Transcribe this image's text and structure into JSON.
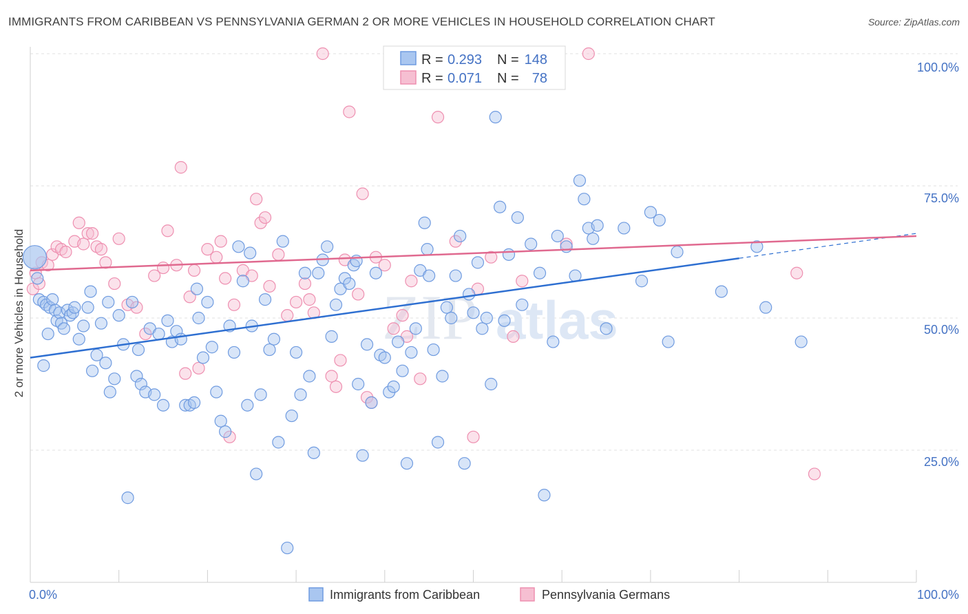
{
  "title": "IMMIGRANTS FROM CARIBBEAN VS PENNSYLVANIA GERMAN 2 OR MORE VEHICLES IN HOUSEHOLD CORRELATION CHART",
  "source": "Source: ZipAtlas.com",
  "watermark": {
    "zip": "ZIP",
    "atlas": "atlas"
  },
  "legend_top": [
    {
      "r_label": "R =",
      "r_value": "0.293",
      "n_label": "N =",
      "n_value": "148",
      "color": "#6f9be0"
    },
    {
      "r_label": "R =",
      "r_value": "0.071",
      "n_label": "N =",
      "n_value": "78",
      "color": "#ee8fb0"
    }
  ],
  "legend_bottom": [
    {
      "label": "Immigrants from Caribbean",
      "color": "#6f9be0"
    },
    {
      "label": "Pennsylvania Germans",
      "color": "#ee8fb0"
    }
  ],
  "colors": {
    "blue_fill": "#a9c6f0",
    "blue_stroke": "#6f9be0",
    "blue_line": "#2e6fd1",
    "pink_fill": "#f6bfd2",
    "pink_stroke": "#ee8fb0",
    "pink_line": "#e0698f"
  },
  "chart_data": {
    "type": "scatter",
    "xlabel": "",
    "ylabel": "2 or more Vehicles in Household",
    "xlim": [
      0,
      100
    ],
    "ylim": [
      0,
      100
    ],
    "x_tick_labels": [
      "0.0%",
      "100.0%"
    ],
    "y_ticks": [
      25,
      50,
      75,
      100
    ],
    "y_tick_labels": [
      "25.0%",
      "50.0%",
      "75.0%",
      "100.0%"
    ],
    "grid": true,
    "series": [
      {
        "name": "Immigrants from Caribbean",
        "color": "#6f9be0",
        "trend": {
          "x": [
            0,
            80
          ],
          "y": [
            42.5,
            61.3
          ],
          "dashed_to": [
            100,
            66.0
          ]
        },
        "points": [
          [
            0.5,
            61.5
          ],
          [
            0.8,
            57.5
          ],
          [
            1.0,
            53.5
          ],
          [
            1.5,
            53
          ],
          [
            1.8,
            52.5
          ],
          [
            2.2,
            52
          ],
          [
            2.5,
            53.5
          ],
          [
            2.8,
            51.5
          ],
          [
            3.0,
            49.5
          ],
          [
            3.3,
            51
          ],
          [
            3.5,
            49
          ],
          [
            3.8,
            48
          ],
          [
            4.2,
            51.5
          ],
          [
            4.5,
            50.5
          ],
          [
            4.8,
            51
          ],
          [
            5.0,
            52
          ],
          [
            5.5,
            46
          ],
          [
            6.0,
            48.5
          ],
          [
            6.5,
            52
          ],
          [
            7.0,
            40
          ],
          [
            7.5,
            43
          ],
          [
            8.0,
            49
          ],
          [
            8.5,
            41.5
          ],
          [
            8.8,
            53
          ],
          [
            9.0,
            36
          ],
          [
            9.5,
            38.5
          ],
          [
            10.0,
            50.5
          ],
          [
            10.5,
            45
          ],
          [
            11.0,
            16
          ],
          [
            11.5,
            53
          ],
          [
            12.0,
            39
          ],
          [
            12.5,
            37.5
          ],
          [
            13.0,
            36
          ],
          [
            13.5,
            48
          ],
          [
            14.0,
            35.5
          ],
          [
            14.5,
            47
          ],
          [
            15.0,
            33.5
          ],
          [
            15.5,
            49.5
          ],
          [
            16.0,
            45.5
          ],
          [
            16.5,
            47.5
          ],
          [
            17.0,
            46
          ],
          [
            17.5,
            33.5
          ],
          [
            18.0,
            33.5
          ],
          [
            18.5,
            34
          ],
          [
            19.0,
            50
          ],
          [
            19.5,
            42.5
          ],
          [
            20.0,
            53
          ],
          [
            20.5,
            44.5
          ],
          [
            21.0,
            36
          ],
          [
            21.5,
            30.5
          ],
          [
            22.0,
            28.5
          ],
          [
            22.5,
            48.5
          ],
          [
            23.0,
            43.5
          ],
          [
            23.5,
            63.5
          ],
          [
            24.0,
            57
          ],
          [
            24.5,
            33.5
          ],
          [
            25.0,
            48.5
          ],
          [
            25.5,
            20.5
          ],
          [
            26.0,
            35.5
          ],
          [
            26.5,
            53.5
          ],
          [
            27.0,
            44
          ],
          [
            27.5,
            46
          ],
          [
            28.0,
            26.5
          ],
          [
            28.5,
            64.5
          ],
          [
            29.0,
            6.5
          ],
          [
            29.5,
            31.5
          ],
          [
            30.0,
            43.5
          ],
          [
            30.5,
            35.5
          ],
          [
            31.0,
            58.5
          ],
          [
            31.5,
            39
          ],
          [
            32.0,
            24.5
          ],
          [
            32.5,
            58.5
          ],
          [
            33.0,
            61
          ],
          [
            33.5,
            63.5
          ],
          [
            34.0,
            46.5
          ],
          [
            34.5,
            52.5
          ],
          [
            35.0,
            55.5
          ],
          [
            35.5,
            57.5
          ],
          [
            36.0,
            56.5
          ],
          [
            36.5,
            60
          ],
          [
            37.0,
            37.5
          ],
          [
            37.5,
            24
          ],
          [
            38.0,
            45
          ],
          [
            38.5,
            34
          ],
          [
            39.0,
            58.5
          ],
          [
            39.5,
            43
          ],
          [
            40.0,
            42.5
          ],
          [
            40.5,
            36
          ],
          [
            41.0,
            37
          ],
          [
            41.5,
            45.5
          ],
          [
            42.0,
            40
          ],
          [
            42.5,
            22.5
          ],
          [
            43.0,
            43.5
          ],
          [
            43.5,
            48
          ],
          [
            44.0,
            59
          ],
          [
            44.5,
            68
          ],
          [
            45.0,
            58
          ],
          [
            45.5,
            44
          ],
          [
            46.0,
            26.5
          ],
          [
            46.5,
            39
          ],
          [
            47.0,
            52
          ],
          [
            47.5,
            50
          ],
          [
            48.0,
            58
          ],
          [
            48.5,
            65.5
          ],
          [
            49.0,
            22.5
          ],
          [
            49.5,
            54.5
          ],
          [
            50.0,
            51
          ],
          [
            50.5,
            60.5
          ],
          [
            51.0,
            48
          ],
          [
            51.5,
            50
          ],
          [
            52.0,
            37.5
          ],
          [
            52.5,
            88
          ],
          [
            53.0,
            71
          ],
          [
            53.5,
            49.5
          ],
          [
            54.0,
            62
          ],
          [
            55.0,
            69
          ],
          [
            55.5,
            52.5
          ],
          [
            56.5,
            64
          ],
          [
            57.5,
            58.5
          ],
          [
            58.0,
            16.5
          ],
          [
            59.0,
            45.5
          ],
          [
            59.5,
            65.5
          ],
          [
            60.5,
            63.5
          ],
          [
            61.5,
            58
          ],
          [
            62.0,
            76
          ],
          [
            62.5,
            72.5
          ],
          [
            63.0,
            67
          ],
          [
            63.5,
            65
          ],
          [
            64.0,
            67.5
          ],
          [
            65.0,
            48
          ],
          [
            67.0,
            67
          ],
          [
            69.0,
            57
          ],
          [
            70.0,
            70
          ],
          [
            71.0,
            68.5
          ],
          [
            72.0,
            45.5
          ],
          [
            73.0,
            62.5
          ],
          [
            78.0,
            55
          ],
          [
            82.0,
            63.5
          ],
          [
            83.0,
            52
          ],
          [
            87.0,
            45.5
          ],
          [
            1.5,
            41
          ],
          [
            2.0,
            47
          ],
          [
            6.8,
            55
          ],
          [
            12.2,
            44
          ],
          [
            18.8,
            55.5
          ],
          [
            24.8,
            62.3
          ],
          [
            36.8,
            60.8
          ],
          [
            44.8,
            63
          ]
        ]
      },
      {
        "name": "Pennsylvania Germans",
        "color": "#ee8fb0",
        "trend": {
          "x": [
            0,
            100
          ],
          "y": [
            59.0,
            65.5
          ]
        },
        "points": [
          [
            0.3,
            55.5
          ],
          [
            0.6,
            58.5
          ],
          [
            1.0,
            56.5
          ],
          [
            1.3,
            60.5
          ],
          [
            2.0,
            60
          ],
          [
            2.5,
            62
          ],
          [
            3.0,
            63.5
          ],
          [
            3.5,
            63
          ],
          [
            4.0,
            62.5
          ],
          [
            5.0,
            64.5
          ],
          [
            5.5,
            68
          ],
          [
            6.0,
            64
          ],
          [
            6.5,
            66
          ],
          [
            7.0,
            66
          ],
          [
            7.5,
            63.5
          ],
          [
            8.0,
            63
          ],
          [
            8.5,
            60.5
          ],
          [
            9.5,
            56.5
          ],
          [
            10.0,
            65
          ],
          [
            11.0,
            52.5
          ],
          [
            12.0,
            52
          ],
          [
            13.0,
            47
          ],
          [
            14.0,
            58
          ],
          [
            15.0,
            59.5
          ],
          [
            15.5,
            66.5
          ],
          [
            16.5,
            60
          ],
          [
            17.0,
            78.5
          ],
          [
            17.5,
            39.5
          ],
          [
            18.0,
            54
          ],
          [
            18.5,
            59
          ],
          [
            19.0,
            40.5
          ],
          [
            20.0,
            63
          ],
          [
            21.0,
            61.5
          ],
          [
            21.5,
            64.5
          ],
          [
            22.0,
            57.5
          ],
          [
            22.5,
            27.5
          ],
          [
            23.0,
            52.5
          ],
          [
            24.0,
            59
          ],
          [
            25.0,
            58
          ],
          [
            25.5,
            72.5
          ],
          [
            26.0,
            68
          ],
          [
            26.5,
            69
          ],
          [
            27.0,
            56
          ],
          [
            28.0,
            62
          ],
          [
            29.0,
            50.5
          ],
          [
            30.0,
            53
          ],
          [
            31.0,
            56.5
          ],
          [
            31.5,
            53.5
          ],
          [
            32.0,
            51
          ],
          [
            33.0,
            100
          ],
          [
            34.0,
            39
          ],
          [
            34.5,
            37
          ],
          [
            35.0,
            42
          ],
          [
            35.5,
            61
          ],
          [
            36.0,
            89
          ],
          [
            37.0,
            54.5
          ],
          [
            37.5,
            73.5
          ],
          [
            38.0,
            35
          ],
          [
            38.5,
            34
          ],
          [
            39.0,
            61.5
          ],
          [
            40.0,
            60
          ],
          [
            41.0,
            48
          ],
          [
            42.0,
            50.5
          ],
          [
            42.5,
            46.5
          ],
          [
            43.0,
            57
          ],
          [
            44.0,
            38.5
          ],
          [
            45.0,
            100
          ],
          [
            46.0,
            88
          ],
          [
            48.0,
            64.5
          ],
          [
            50.0,
            27.5
          ],
          [
            50.5,
            55.5
          ],
          [
            52.0,
            61.5
          ],
          [
            54.5,
            46.5
          ],
          [
            55.5,
            57
          ],
          [
            60.5,
            64
          ],
          [
            63.0,
            100
          ],
          [
            86.5,
            58.5
          ],
          [
            88.5,
            20.5
          ]
        ]
      }
    ]
  }
}
